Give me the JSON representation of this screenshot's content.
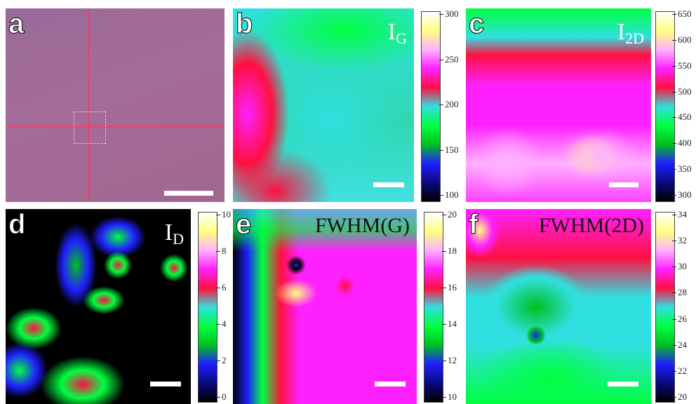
{
  "panels": {
    "a": {
      "label": "a"
    },
    "b": {
      "label": "b",
      "title": "I",
      "title_sub": "G",
      "colorbar_ticks": [
        "300",
        "250",
        "200",
        "150",
        "100"
      ]
    },
    "c": {
      "label": "c",
      "title": "I",
      "title_sub": "2D",
      "colorbar_ticks": [
        "650",
        "600",
        "550",
        "500",
        "450",
        "400",
        "350",
        "300"
      ]
    },
    "d": {
      "label": "d",
      "title": "I",
      "title_sub": "D",
      "colorbar_ticks": [
        "10",
        "8",
        "6",
        "4",
        "2",
        "0"
      ]
    },
    "e": {
      "label": "e",
      "title": "FWHM(G)",
      "colorbar_ticks": [
        "20",
        "18",
        "16",
        "14",
        "12",
        "10"
      ]
    },
    "f": {
      "label": "f",
      "title": "FWHM(2D)",
      "colorbar_ticks": [
        "34",
        "32",
        "30",
        "28",
        "26",
        "24",
        "22",
        "20"
      ]
    }
  },
  "colors": {
    "colormap": [
      "#000000",
      "#0a0a80",
      "#1f1fff",
      "#00c020",
      "#00ff40",
      "#30e0e0",
      "#ff1040",
      "#ff20ff",
      "#ffb0ff",
      "#ffff80",
      "#ffffff"
    ],
    "optical_bg": "#a06898",
    "crosshair": "#ff3050"
  }
}
